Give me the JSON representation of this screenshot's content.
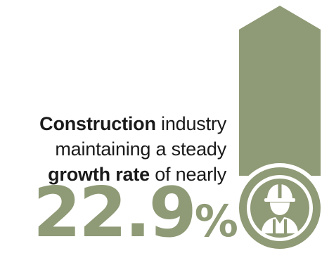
{
  "headline": {
    "line1_bold": "Construction",
    "line1_rest": " industry",
    "line2": "maintaining a steady",
    "line3_bold": "growth rate",
    "line3_rest": " of nearly"
  },
  "stat": {
    "value": "22.9",
    "unit": "%"
  },
  "icon": {
    "name": "construction-worker-icon"
  },
  "colors": {
    "accent": "#8f9a76",
    "text": "#1a1a1a",
    "background": "#ffffff"
  }
}
